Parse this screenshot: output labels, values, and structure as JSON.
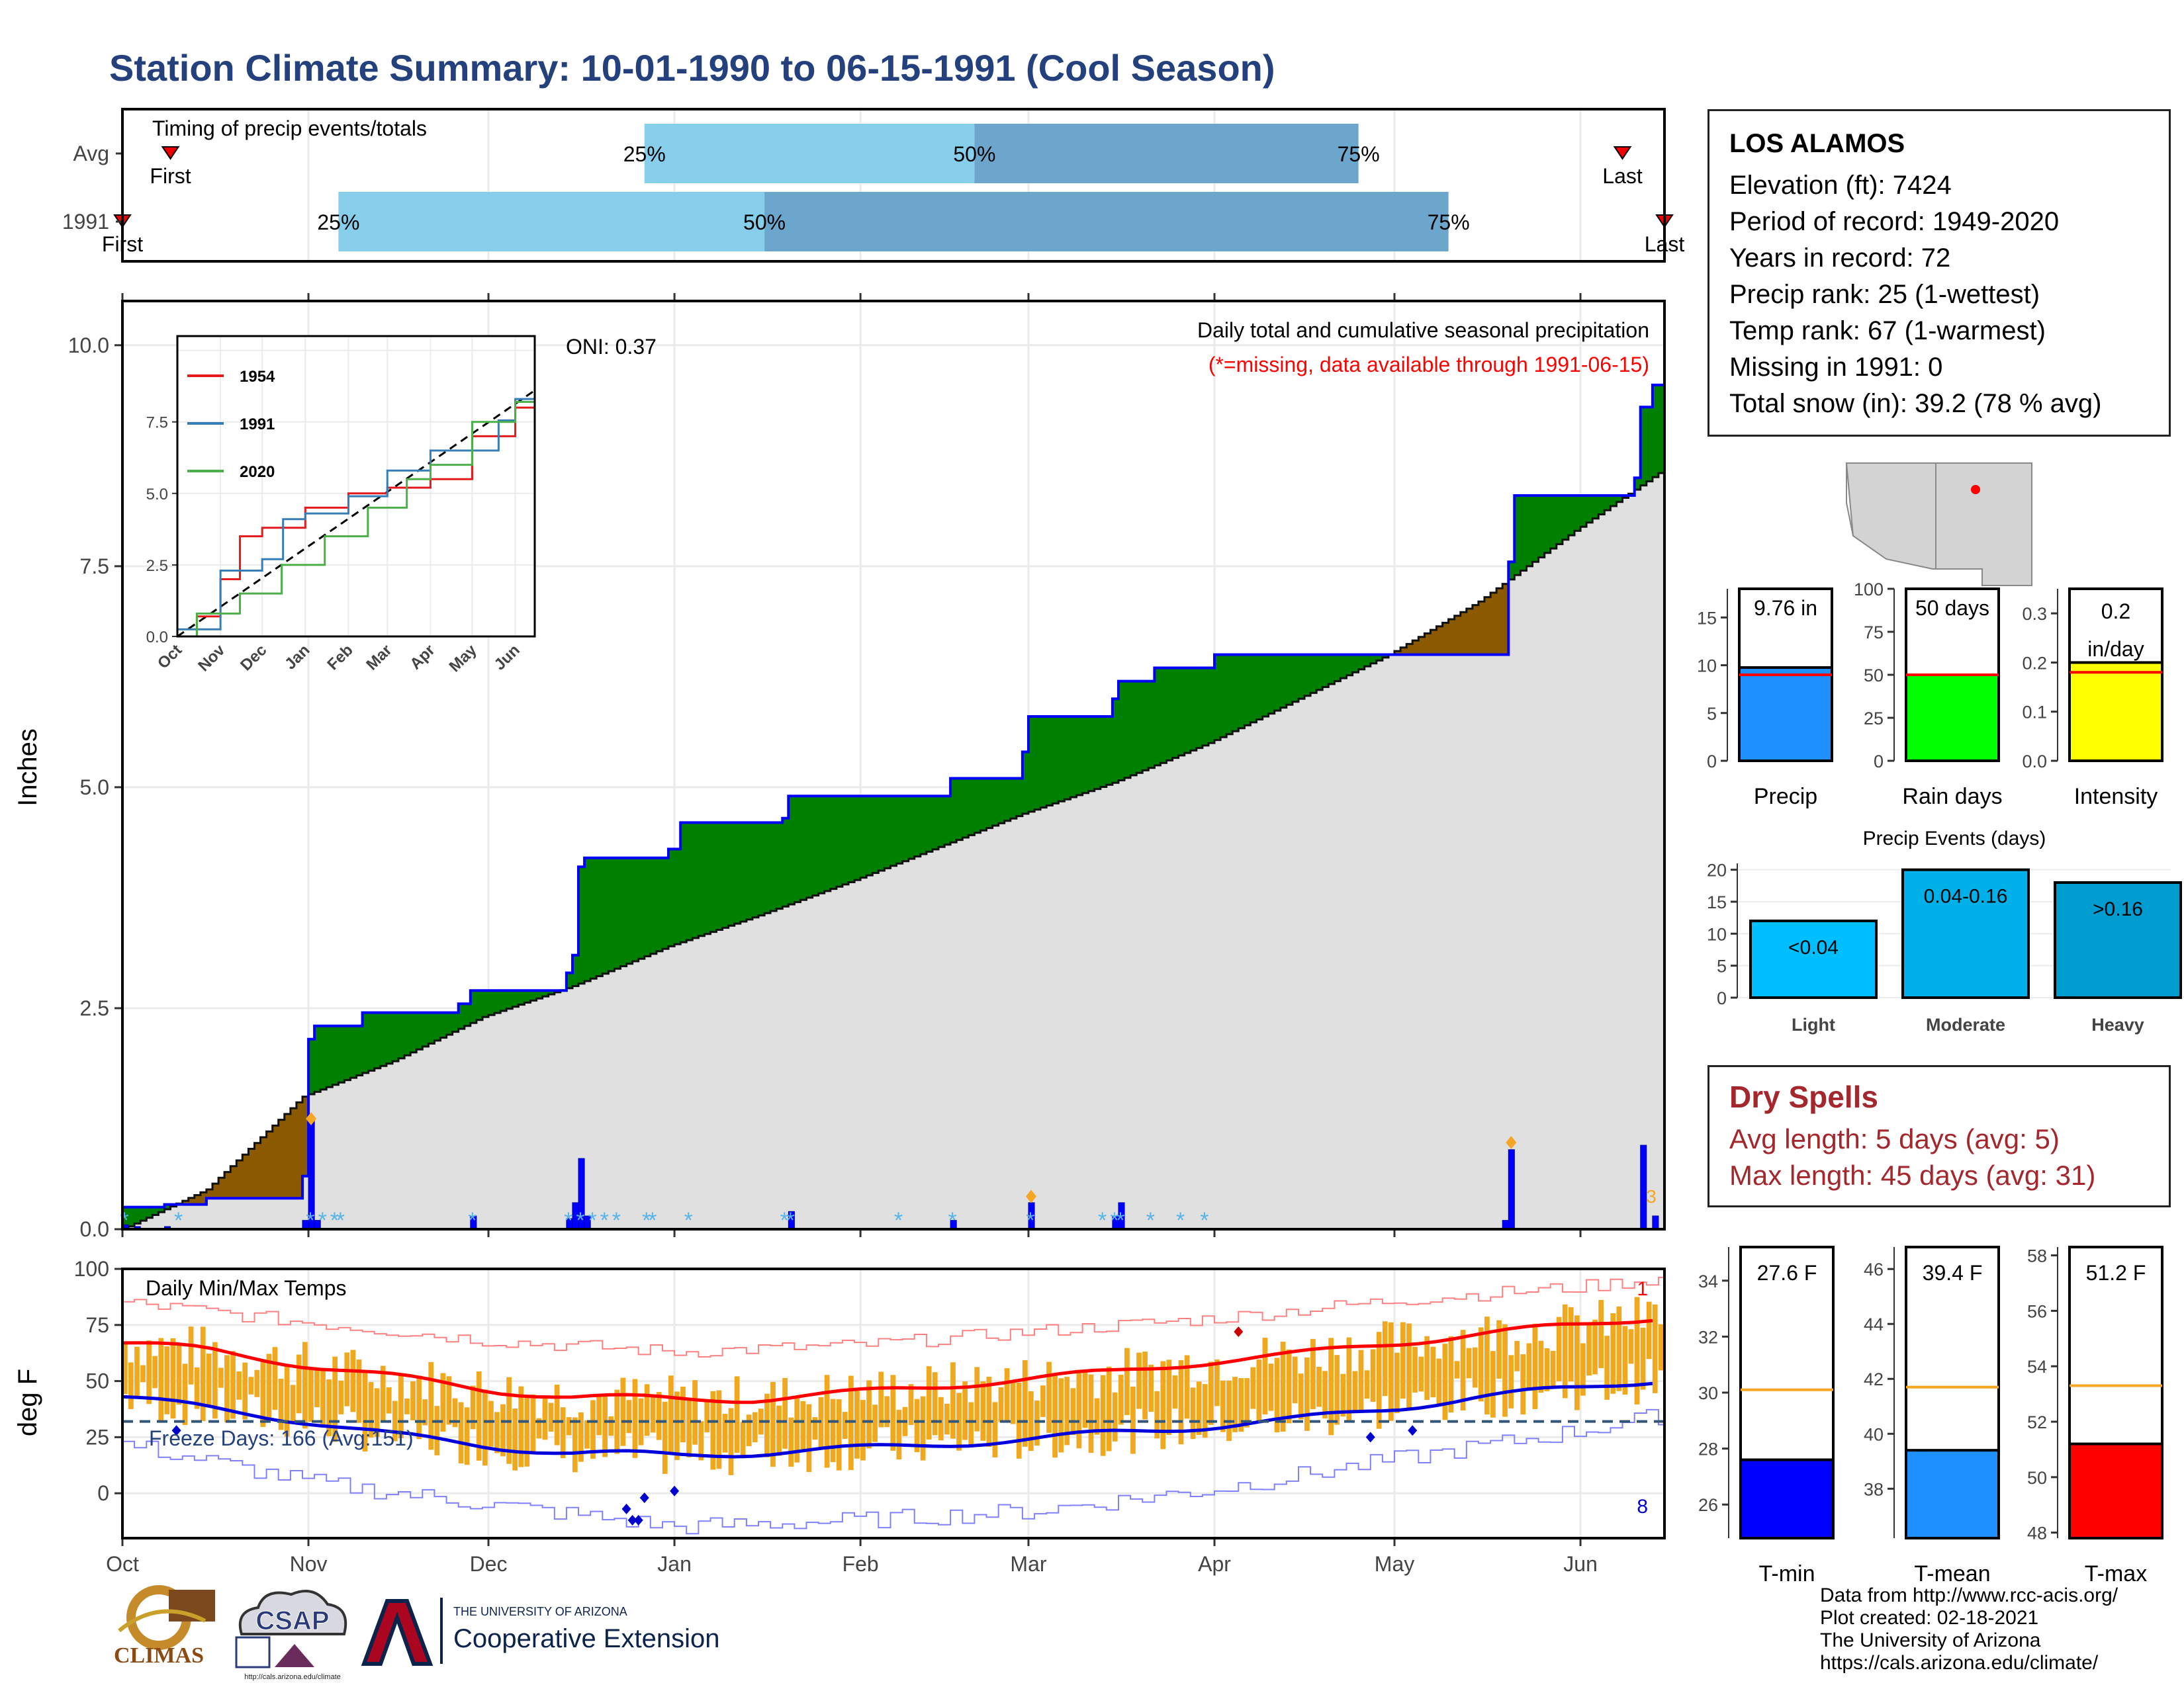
{
  "title": "Station Climate Summary: 10-01-1990 to 06-15-1991 (Cool Season)",
  "station": {
    "name": "LOS ALAMOS",
    "lines": [
      "Elevation (ft): 7424",
      "Period of record: 1949-2020",
      "Years in record: 72",
      "Precip rank: 25 (1-wettest)",
      "Temp rank: 67 (1-warmest)",
      "Missing in 1991: 0",
      "Total snow (in): 39.2 (78 % avg)"
    ]
  },
  "dry_spells": {
    "title": "Dry Spells",
    "avg_length": "Avg length: 5 days (avg: 5)",
    "max_length": "Max length: 45 days (avg: 31)"
  },
  "credits": [
    "Data from http://www.rcc-acis.org/",
    "Plot created: 02-18-2021",
    "The University of Arizona",
    "https://cals.arizona.edu/climate/"
  ],
  "logos": {
    "climas": "CLIMAS",
    "csap": "CSAP",
    "csap_url": "http://cals.arizona.edu/climate",
    "ua_small": "THE UNIVERSITY OF ARIZONA",
    "ua_big": "Cooperative Extension"
  },
  "colors": {
    "title": "#24417d",
    "green": "#008000",
    "brown": "#8b5a00",
    "blue": "#0000ff",
    "gray": "#e0e0e0",
    "orange": "#f0a81e",
    "red": "#ff0000",
    "dry": "#a3272c"
  },
  "chart_data": [
    {
      "type": "bar",
      "name": "timing",
      "title": "Timing of precip events/totals",
      "rows": [
        {
          "label": "Avg",
          "p25": "25%",
          "p50": "50%",
          "p75": "75%",
          "first": "First",
          "last": "Last",
          "first_date": "1990-10-09",
          "p25_date": "1990-12-27",
          "p50_date": "1991-02-20",
          "p75_date": "1991-04-25",
          "last_date": "1991-06-08"
        },
        {
          "label": "1991",
          "p25": "25%",
          "p50": "50%",
          "p75": "75%",
          "first": "First",
          "last": "Last",
          "first_date": "1990-10-01",
          "p25_date": "1990-11-06",
          "p50_date": "1991-01-16",
          "p75_date": "1991-05-10",
          "last_date": "1991-06-15"
        }
      ]
    },
    {
      "type": "area",
      "name": "cumulative_precip",
      "title": "Daily total and cumulative seasonal precipitation",
      "subtitle": "(*=missing, data available through 1991-06-15)",
      "oni": "ONI: 0.37",
      "ylabel": "Inches",
      "ylim": [
        0,
        10.5
      ],
      "yticks": [
        "0.0",
        "2.5",
        "5.0",
        "7.5",
        "10.0"
      ],
      "avg_cumulative": [
        [
          "1990-10-01",
          0.0
        ],
        [
          "1990-10-15",
          0.45
        ],
        [
          "1990-10-31",
          1.5
        ],
        [
          "1990-11-15",
          1.9
        ],
        [
          "1990-11-30",
          2.4
        ],
        [
          "1990-12-15",
          2.75
        ],
        [
          "1990-12-31",
          3.2
        ],
        [
          "1991-01-15",
          3.55
        ],
        [
          "1991-01-31",
          3.95
        ],
        [
          "1991-02-15",
          4.35
        ],
        [
          "1991-02-28",
          4.7
        ],
        [
          "1991-03-15",
          5.05
        ],
        [
          "1991-03-31",
          5.5
        ],
        [
          "1991-04-15",
          6.0
        ],
        [
          "1991-04-30",
          6.5
        ],
        [
          "1991-05-15",
          7.1
        ],
        [
          "1991-05-31",
          7.9
        ],
        [
          "1991-06-15",
          8.6
        ]
      ],
      "cumulative_1991": [
        [
          "1990-10-01",
          0.25
        ],
        [
          "1990-10-08",
          0.28
        ],
        [
          "1990-10-15",
          0.35
        ],
        [
          "1990-10-31",
          0.6
        ],
        [
          "1990-11-01",
          2.15
        ],
        [
          "1990-11-02",
          2.3
        ],
        [
          "1990-11-10",
          2.45
        ],
        [
          "1990-11-26",
          2.55
        ],
        [
          "1990-11-28",
          2.7
        ],
        [
          "1990-12-14",
          2.9
        ],
        [
          "1990-12-15",
          3.1
        ],
        [
          "1990-12-16",
          4.1
        ],
        [
          "1990-12-17",
          4.2
        ],
        [
          "1990-12-31",
          4.3
        ],
        [
          "1991-01-02",
          4.6
        ],
        [
          "1991-01-19",
          4.65
        ],
        [
          "1991-01-20",
          4.9
        ],
        [
          "1991-02-15",
          4.9
        ],
        [
          "1991-02-16",
          5.1
        ],
        [
          "1991-02-28",
          5.4
        ],
        [
          "1991-03-01",
          5.8
        ],
        [
          "1991-03-15",
          6.0
        ],
        [
          "1991-03-16",
          6.2
        ],
        [
          "1991-03-22",
          6.35
        ],
        [
          "1991-04-01",
          6.5
        ],
        [
          "1991-05-19",
          6.5
        ],
        [
          "1991-05-20",
          7.55
        ],
        [
          "1991-05-21",
          8.3
        ],
        [
          "1991-06-01",
          8.3
        ],
        [
          "1991-06-10",
          8.5
        ],
        [
          "1991-06-11",
          9.3
        ],
        [
          "1991-06-13",
          9.55
        ],
        [
          "1991-06-15",
          9.76
        ]
      ],
      "daily_precip_1991": [
        [
          "1990-10-01",
          0.05
        ],
        [
          "1990-10-03",
          0.03
        ],
        [
          "1990-10-08",
          0.03
        ],
        [
          "1990-10-31",
          0.1
        ],
        [
          "1990-11-01",
          1.25
        ],
        [
          "1990-11-02",
          0.1
        ],
        [
          "1990-11-28",
          0.15
        ],
        [
          "1990-12-14",
          0.12
        ],
        [
          "1990-12-15",
          0.3
        ],
        [
          "1990-12-16",
          0.8
        ],
        [
          "1990-12-17",
          0.15
        ],
        [
          "1991-01-20",
          0.2
        ],
        [
          "1991-02-16",
          0.1
        ],
        [
          "1991-03-01",
          0.3
        ],
        [
          "1991-03-15",
          0.15
        ],
        [
          "1991-03-16",
          0.3
        ],
        [
          "1991-05-19",
          0.1
        ],
        [
          "1991-05-20",
          0.9
        ],
        [
          "1991-06-11",
          0.95
        ],
        [
          "1991-06-13",
          0.15
        ]
      ],
      "inset": {
        "series": [
          {
            "name": "1954",
            "color": "#e41a1c",
            "points": [
              [
                "1990-10-01",
                0
              ],
              [
                "1990-10-15",
                0.7
              ],
              [
                "1990-11-01",
                2.0
              ],
              [
                "1990-11-15",
                3.5
              ],
              [
                "1990-12-01",
                3.8
              ],
              [
                "1991-01-01",
                4.5
              ],
              [
                "1991-02-01",
                5.0
              ],
              [
                "1991-03-01",
                5.2
              ],
              [
                "1991-04-01",
                5.5
              ],
              [
                "1991-05-01",
                7.0
              ],
              [
                "1991-06-01",
                8.0
              ],
              [
                "1991-06-15",
                8.5
              ]
            ]
          },
          {
            "name": "1991",
            "color": "#377eb8",
            "points": [
              [
                "1990-10-01",
                0.25
              ],
              [
                "1990-11-01",
                2.3
              ],
              [
                "1990-12-01",
                2.7
              ],
              [
                "1990-12-16",
                4.1
              ],
              [
                "1991-01-01",
                4.3
              ],
              [
                "1991-02-01",
                4.9
              ],
              [
                "1991-03-01",
                5.8
              ],
              [
                "1991-04-01",
                6.5
              ],
              [
                "1991-05-20",
                7.55
              ],
              [
                "1991-06-01",
                8.3
              ],
              [
                "1991-06-15",
                9.76
              ]
            ]
          },
          {
            "name": "2020",
            "color": "#4daf4a",
            "points": [
              [
                "1990-10-01",
                0
              ],
              [
                "1990-10-15",
                0.8
              ],
              [
                "1990-11-15",
                1.5
              ],
              [
                "1990-12-15",
                2.5
              ],
              [
                "1991-01-15",
                3.5
              ],
              [
                "1991-02-15",
                4.5
              ],
              [
                "1991-03-15",
                5.5
              ],
              [
                "1991-04-01",
                6.0
              ],
              [
                "1991-05-01",
                7.5
              ],
              [
                "1991-06-01",
                8.2
              ],
              [
                "1991-06-15",
                8.8
              ]
            ]
          }
        ],
        "yticks": [
          "0.0",
          "2.5",
          "5.0",
          "7.5"
        ],
        "xticks": [
          "Oct",
          "Nov",
          "Dec",
          "Jan",
          "Feb",
          "Mar",
          "Apr",
          "May",
          "Jun"
        ]
      }
    },
    {
      "type": "bar",
      "name": "daily_temps",
      "title": "Daily Min/Max Temps",
      "ylabel": "deg F",
      "ylim": [
        -20,
        100
      ],
      "yticks": [
        "0",
        "25",
        "50",
        "75",
        "100"
      ],
      "freeze_days": "Freeze Days: 166 (Avg:151)",
      "freeze_line": 32,
      "count_high": "1",
      "count_low": "8",
      "normal_max": [
        [
          "1990-10-01",
          67
        ],
        [
          "1990-10-15",
          64
        ],
        [
          "1990-11-01",
          57
        ],
        [
          "1990-11-15",
          52
        ],
        [
          "1990-12-01",
          46
        ],
        [
          "1990-12-15",
          43
        ],
        [
          "1991-01-01",
          42
        ],
        [
          "1991-01-15",
          42
        ],
        [
          "1991-02-01",
          45
        ],
        [
          "1991-02-15",
          48
        ],
        [
          "1991-03-01",
          51
        ],
        [
          "1991-03-15",
          54
        ],
        [
          "1991-04-01",
          59
        ],
        [
          "1991-04-15",
          62
        ],
        [
          "1991-05-01",
          67
        ],
        [
          "1991-05-15",
          71
        ],
        [
          "1991-06-01",
          75
        ],
        [
          "1991-06-15",
          79
        ]
      ],
      "normal_min": [
        [
          "1990-10-01",
          43
        ],
        [
          "1990-10-15",
          38
        ],
        [
          "1990-11-01",
          32
        ],
        [
          "1990-11-15",
          26
        ],
        [
          "1990-12-01",
          21
        ],
        [
          "1990-12-15",
          18
        ],
        [
          "1991-01-01",
          17
        ],
        [
          "1991-01-15",
          18
        ],
        [
          "1991-02-01",
          20
        ],
        [
          "1991-02-15",
          22
        ],
        [
          "1991-03-01",
          24
        ],
        [
          "1991-03-15",
          27
        ],
        [
          "1991-04-01",
          30
        ],
        [
          "1991-04-15",
          33
        ],
        [
          "1991-05-01",
          38
        ],
        [
          "1991-05-15",
          43
        ],
        [
          "1991-06-01",
          47
        ],
        [
          "1991-06-15",
          51
        ]
      ],
      "record_max": [
        [
          "1990-10-01",
          85
        ],
        [
          "1990-11-01",
          76
        ],
        [
          "1990-12-01",
          68
        ],
        [
          "1991-01-01",
          63
        ],
        [
          "1991-02-01",
          66
        ],
        [
          "1991-03-01",
          72
        ],
        [
          "1991-04-01",
          78
        ],
        [
          "1991-05-01",
          86
        ],
        [
          "1991-06-01",
          92
        ],
        [
          "1991-06-15",
          96
        ]
      ],
      "record_min": [
        [
          "1990-10-01",
          22
        ],
        [
          "1990-11-01",
          5
        ],
        [
          "1990-12-01",
          -5
        ],
        [
          "1991-01-01",
          -15
        ],
        [
          "1991-02-01",
          -12
        ],
        [
          "1991-03-01",
          -8
        ],
        [
          "1991-04-01",
          2
        ],
        [
          "1991-05-01",
          15
        ],
        [
          "1991-06-01",
          28
        ],
        [
          "1991-06-15",
          35
        ]
      ]
    },
    {
      "type": "bar",
      "name": "season_totals",
      "panels": [
        {
          "category": "Precip",
          "value": 9.76,
          "label": "9.76 in",
          "avg": 9.0,
          "ylim": [
            0,
            18
          ],
          "yticks": [
            "0",
            "5",
            "10",
            "15"
          ],
          "color": "#1e90ff"
        },
        {
          "category": "Rain days",
          "value": 50,
          "label": "50 days",
          "avg": 50,
          "ylim": [
            0,
            100
          ],
          "yticks": [
            "0",
            "25",
            "50",
            "75",
            "100"
          ],
          "color": "#00ff00"
        },
        {
          "category": "Intensity",
          "value": 0.2,
          "label": "0.2 in/day",
          "avg": 0.18,
          "ylim": [
            0,
            0.35
          ],
          "yticks": [
            "0.0",
            "0.1",
            "0.2",
            "0.3"
          ],
          "color": "#ffff00"
        }
      ]
    },
    {
      "type": "bar",
      "name": "precip_events",
      "title": "Precip Events (days)",
      "categories": [
        "Light",
        "Moderate",
        "Heavy"
      ],
      "values": [
        12,
        20,
        18
      ],
      "labels": [
        "<0.04",
        "0.04-0.16",
        ">0.16"
      ],
      "ylim": [
        0,
        21
      ],
      "yticks": [
        "0",
        "5",
        "10",
        "15",
        "20"
      ]
    },
    {
      "type": "bar",
      "name": "season_temps",
      "panels": [
        {
          "category": "T-min",
          "value": 27.6,
          "label": "27.6 F",
          "avg": 30.1,
          "ylim": [
            24.8,
            35.2
          ],
          "yticks": [
            "26",
            "28",
            "30",
            "32",
            "34"
          ],
          "color": "#0000ff"
        },
        {
          "category": "T-mean",
          "value": 39.4,
          "label": "39.4 F",
          "avg": 41.7,
          "ylim": [
            36.2,
            46.8
          ],
          "yticks": [
            "38",
            "40",
            "42",
            "44",
            "46"
          ],
          "color": "#1e90ff"
        },
        {
          "category": "T-max",
          "value": 51.2,
          "label": "51.2 F",
          "avg": 53.3,
          "ylim": [
            47.8,
            58.3
          ],
          "yticks": [
            "48",
            "50",
            "52",
            "54",
            "56",
            "58"
          ],
          "color": "#ff0000"
        }
      ]
    }
  ],
  "months": [
    "Oct",
    "Nov",
    "Dec",
    "Jan",
    "Feb",
    "Mar",
    "Apr",
    "May",
    "Jun"
  ],
  "date_range": [
    "1990-10-01",
    "1991-06-15"
  ]
}
